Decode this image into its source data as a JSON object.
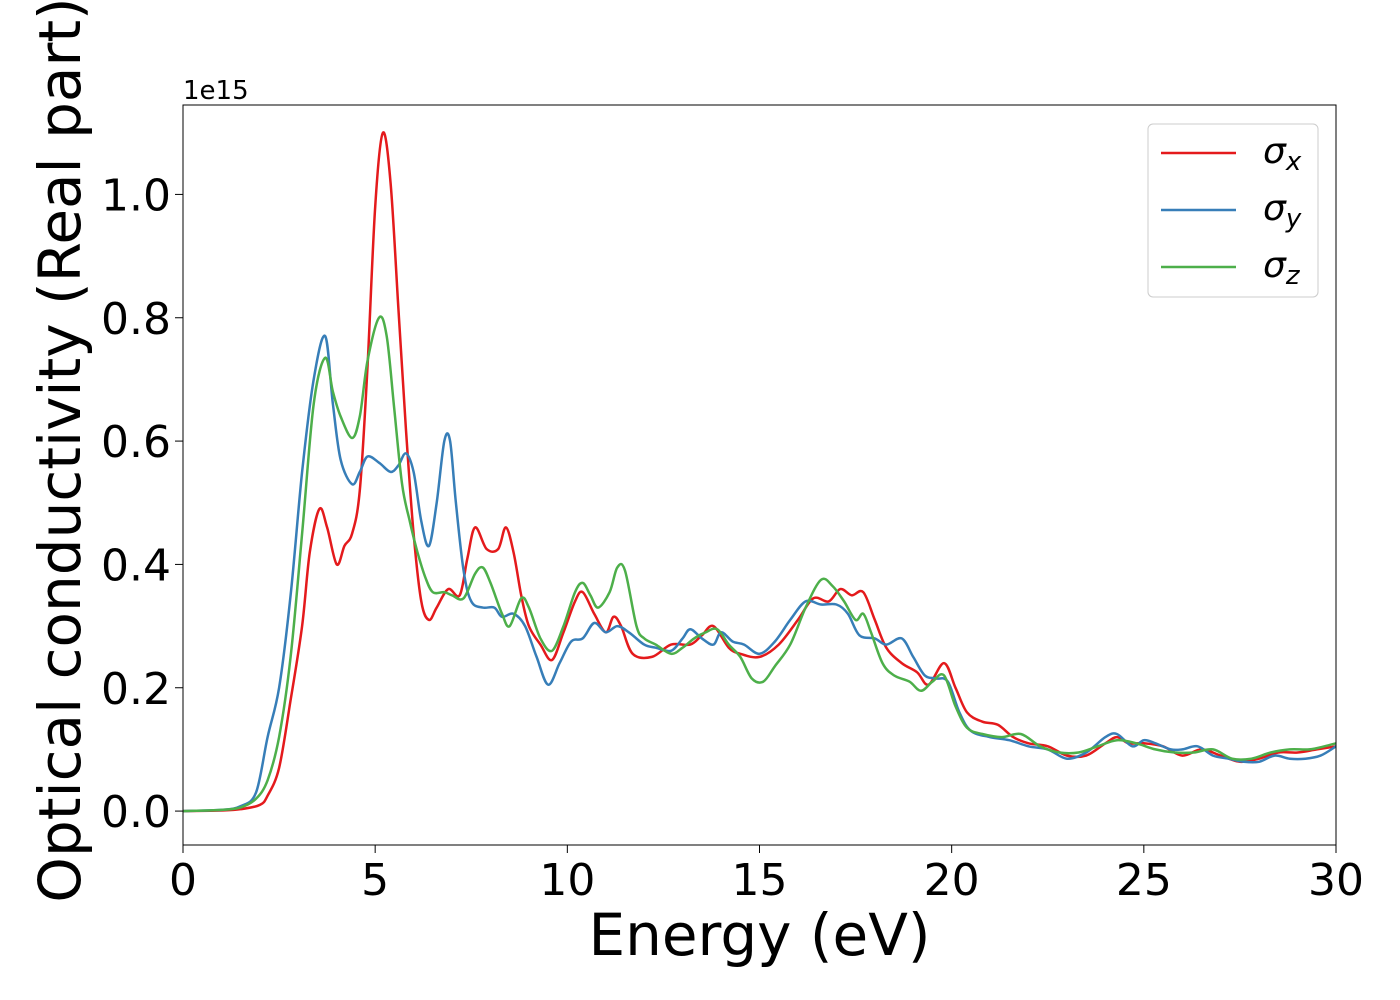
{
  "chart_data": {
    "type": "line",
    "title": "",
    "xlabel": "Energy (eV)",
    "ylabel": "Optical conductivity (Real part)",
    "y_scale_label": "1e15",
    "xlim": [
      0,
      30
    ],
    "ylim": [
      -0.055,
      1.145
    ],
    "x_ticks": [
      0,
      5,
      10,
      15,
      20,
      25,
      30
    ],
    "x_tick_labels": [
      "0",
      "5",
      "10",
      "15",
      "20",
      "25",
      "30"
    ],
    "y_ticks": [
      0.0,
      0.2,
      0.4,
      0.6,
      0.8,
      1.0
    ],
    "y_tick_labels": [
      "0.0",
      "0.2",
      "0.4",
      "0.6",
      "0.8",
      "1.0"
    ],
    "grid": false,
    "legend_position": "top-right",
    "series": [
      {
        "name": "σx",
        "legend_base": "σ",
        "legend_sub": "x",
        "color": "#e41a1c",
        "points": [
          [
            0,
            0
          ],
          [
            1,
            0.001
          ],
          [
            1.5,
            0.003
          ],
          [
            2,
            0.01
          ],
          [
            2.2,
            0.025
          ],
          [
            2.5,
            0.07
          ],
          [
            2.8,
            0.18
          ],
          [
            3.1,
            0.3
          ],
          [
            3.3,
            0.42
          ],
          [
            3.55,
            0.49
          ],
          [
            3.75,
            0.46
          ],
          [
            4.0,
            0.4
          ],
          [
            4.2,
            0.43
          ],
          [
            4.4,
            0.45
          ],
          [
            4.6,
            0.52
          ],
          [
            4.8,
            0.72
          ],
          [
            5.0,
            0.98
          ],
          [
            5.2,
            1.1
          ],
          [
            5.4,
            1.02
          ],
          [
            5.6,
            0.82
          ],
          [
            5.8,
            0.62
          ],
          [
            6.0,
            0.45
          ],
          [
            6.2,
            0.34
          ],
          [
            6.4,
            0.31
          ],
          [
            6.6,
            0.33
          ],
          [
            6.9,
            0.36
          ],
          [
            7.2,
            0.35
          ],
          [
            7.4,
            0.41
          ],
          [
            7.6,
            0.46
          ],
          [
            7.9,
            0.425
          ],
          [
            8.2,
            0.425
          ],
          [
            8.4,
            0.46
          ],
          [
            8.6,
            0.42
          ],
          [
            8.8,
            0.35
          ],
          [
            9.0,
            0.3
          ],
          [
            9.3,
            0.27
          ],
          [
            9.6,
            0.245
          ],
          [
            9.9,
            0.29
          ],
          [
            10.2,
            0.34
          ],
          [
            10.4,
            0.355
          ],
          [
            10.7,
            0.32
          ],
          [
            11.0,
            0.29
          ],
          [
            11.2,
            0.315
          ],
          [
            11.4,
            0.3
          ],
          [
            11.7,
            0.255
          ],
          [
            12.2,
            0.25
          ],
          [
            12.7,
            0.27
          ],
          [
            13.2,
            0.27
          ],
          [
            13.5,
            0.285
          ],
          [
            13.8,
            0.3
          ],
          [
            14.2,
            0.265
          ],
          [
            14.5,
            0.255
          ],
          [
            15.0,
            0.25
          ],
          [
            15.5,
            0.27
          ],
          [
            16.0,
            0.31
          ],
          [
            16.4,
            0.345
          ],
          [
            16.8,
            0.34
          ],
          [
            17.1,
            0.36
          ],
          [
            17.4,
            0.35
          ],
          [
            17.7,
            0.355
          ],
          [
            18.0,
            0.31
          ],
          [
            18.3,
            0.265
          ],
          [
            18.7,
            0.24
          ],
          [
            19.1,
            0.225
          ],
          [
            19.4,
            0.205
          ],
          [
            19.8,
            0.24
          ],
          [
            20.1,
            0.2
          ],
          [
            20.4,
            0.16
          ],
          [
            20.8,
            0.145
          ],
          [
            21.2,
            0.14
          ],
          [
            21.6,
            0.12
          ],
          [
            22.0,
            0.11
          ],
          [
            22.5,
            0.105
          ],
          [
            23.0,
            0.09
          ],
          [
            23.5,
            0.09
          ],
          [
            24.0,
            0.11
          ],
          [
            24.3,
            0.12
          ],
          [
            24.6,
            0.11
          ],
          [
            25.0,
            0.11
          ],
          [
            25.5,
            0.105
          ],
          [
            26.0,
            0.09
          ],
          [
            26.5,
            0.1
          ],
          [
            27.0,
            0.09
          ],
          [
            27.5,
            0.08
          ],
          [
            28.0,
            0.085
          ],
          [
            28.5,
            0.095
          ],
          [
            29.0,
            0.095
          ],
          [
            29.5,
            0.1
          ],
          [
            30.0,
            0.105
          ]
        ]
      },
      {
        "name": "σy",
        "legend_base": "σ",
        "legend_sub": "y",
        "color": "#377eb8",
        "points": [
          [
            0,
            0
          ],
          [
            1,
            0.002
          ],
          [
            1.5,
            0.008
          ],
          [
            1.9,
            0.03
          ],
          [
            2.2,
            0.12
          ],
          [
            2.5,
            0.2
          ],
          [
            2.8,
            0.35
          ],
          [
            3.1,
            0.55
          ],
          [
            3.4,
            0.7
          ],
          [
            3.7,
            0.77
          ],
          [
            3.9,
            0.66
          ],
          [
            4.1,
            0.57
          ],
          [
            4.4,
            0.53
          ],
          [
            4.6,
            0.55
          ],
          [
            4.8,
            0.575
          ],
          [
            5.1,
            0.565
          ],
          [
            5.4,
            0.55
          ],
          [
            5.6,
            0.56
          ],
          [
            5.8,
            0.58
          ],
          [
            6.0,
            0.55
          ],
          [
            6.2,
            0.47
          ],
          [
            6.4,
            0.43
          ],
          [
            6.6,
            0.5
          ],
          [
            6.8,
            0.6
          ],
          [
            6.95,
            0.6
          ],
          [
            7.1,
            0.5
          ],
          [
            7.3,
            0.39
          ],
          [
            7.5,
            0.34
          ],
          [
            7.8,
            0.33
          ],
          [
            8.1,
            0.33
          ],
          [
            8.3,
            0.315
          ],
          [
            8.6,
            0.32
          ],
          [
            8.9,
            0.3
          ],
          [
            9.2,
            0.25
          ],
          [
            9.5,
            0.205
          ],
          [
            9.8,
            0.24
          ],
          [
            10.1,
            0.275
          ],
          [
            10.4,
            0.28
          ],
          [
            10.7,
            0.305
          ],
          [
            11.0,
            0.29
          ],
          [
            11.3,
            0.3
          ],
          [
            11.6,
            0.29
          ],
          [
            12.0,
            0.27
          ],
          [
            12.3,
            0.265
          ],
          [
            12.7,
            0.26
          ],
          [
            13.0,
            0.28
          ],
          [
            13.2,
            0.295
          ],
          [
            13.5,
            0.28
          ],
          [
            13.8,
            0.27
          ],
          [
            14.0,
            0.29
          ],
          [
            14.3,
            0.275
          ],
          [
            14.6,
            0.27
          ],
          [
            15.0,
            0.255
          ],
          [
            15.4,
            0.275
          ],
          [
            15.8,
            0.31
          ],
          [
            16.2,
            0.34
          ],
          [
            16.6,
            0.335
          ],
          [
            17.0,
            0.335
          ],
          [
            17.3,
            0.32
          ],
          [
            17.6,
            0.285
          ],
          [
            18.0,
            0.28
          ],
          [
            18.3,
            0.27
          ],
          [
            18.7,
            0.28
          ],
          [
            19.0,
            0.25
          ],
          [
            19.3,
            0.22
          ],
          [
            19.6,
            0.215
          ],
          [
            19.9,
            0.21
          ],
          [
            20.2,
            0.16
          ],
          [
            20.5,
            0.13
          ],
          [
            21.0,
            0.12
          ],
          [
            21.5,
            0.115
          ],
          [
            22.0,
            0.105
          ],
          [
            22.5,
            0.1
          ],
          [
            23.0,
            0.085
          ],
          [
            23.5,
            0.095
          ],
          [
            24.0,
            0.12
          ],
          [
            24.3,
            0.125
          ],
          [
            24.7,
            0.105
          ],
          [
            25.0,
            0.115
          ],
          [
            25.3,
            0.11
          ],
          [
            25.7,
            0.1
          ],
          [
            26.0,
            0.1
          ],
          [
            26.4,
            0.105
          ],
          [
            26.8,
            0.09
          ],
          [
            27.2,
            0.085
          ],
          [
            27.6,
            0.08
          ],
          [
            28.0,
            0.08
          ],
          [
            28.4,
            0.09
          ],
          [
            28.8,
            0.085
          ],
          [
            29.2,
            0.085
          ],
          [
            29.6,
            0.09
          ],
          [
            30.0,
            0.105
          ]
        ]
      },
      {
        "name": "σz",
        "legend_base": "σ",
        "legend_sub": "z",
        "color": "#4daf4a",
        "points": [
          [
            0,
            0
          ],
          [
            1,
            0.002
          ],
          [
            1.5,
            0.006
          ],
          [
            1.9,
            0.02
          ],
          [
            2.2,
            0.05
          ],
          [
            2.5,
            0.12
          ],
          [
            2.8,
            0.25
          ],
          [
            3.1,
            0.45
          ],
          [
            3.4,
            0.66
          ],
          [
            3.7,
            0.735
          ],
          [
            3.9,
            0.68
          ],
          [
            4.1,
            0.64
          ],
          [
            4.4,
            0.605
          ],
          [
            4.6,
            0.64
          ],
          [
            4.8,
            0.73
          ],
          [
            5.1,
            0.8
          ],
          [
            5.3,
            0.77
          ],
          [
            5.5,
            0.65
          ],
          [
            5.7,
            0.53
          ],
          [
            5.9,
            0.47
          ],
          [
            6.1,
            0.42
          ],
          [
            6.3,
            0.38
          ],
          [
            6.5,
            0.355
          ],
          [
            6.8,
            0.355
          ],
          [
            7.0,
            0.35
          ],
          [
            7.3,
            0.345
          ],
          [
            7.6,
            0.385
          ],
          [
            7.8,
            0.395
          ],
          [
            8.0,
            0.37
          ],
          [
            8.3,
            0.32
          ],
          [
            8.5,
            0.3
          ],
          [
            8.8,
            0.345
          ],
          [
            9.0,
            0.33
          ],
          [
            9.3,
            0.28
          ],
          [
            9.6,
            0.26
          ],
          [
            9.9,
            0.3
          ],
          [
            10.2,
            0.355
          ],
          [
            10.4,
            0.37
          ],
          [
            10.6,
            0.35
          ],
          [
            10.8,
            0.33
          ],
          [
            11.1,
            0.355
          ],
          [
            11.3,
            0.395
          ],
          [
            11.5,
            0.39
          ],
          [
            11.8,
            0.3
          ],
          [
            12.0,
            0.28
          ],
          [
            12.3,
            0.27
          ],
          [
            12.7,
            0.255
          ],
          [
            13.0,
            0.265
          ],
          [
            13.3,
            0.28
          ],
          [
            13.6,
            0.29
          ],
          [
            13.9,
            0.295
          ],
          [
            14.2,
            0.27
          ],
          [
            14.5,
            0.25
          ],
          [
            14.8,
            0.215
          ],
          [
            15.1,
            0.21
          ],
          [
            15.4,
            0.235
          ],
          [
            15.8,
            0.27
          ],
          [
            16.2,
            0.33
          ],
          [
            16.6,
            0.375
          ],
          [
            16.9,
            0.365
          ],
          [
            17.2,
            0.34
          ],
          [
            17.5,
            0.31
          ],
          [
            17.7,
            0.32
          ],
          [
            17.9,
            0.29
          ],
          [
            18.2,
            0.24
          ],
          [
            18.5,
            0.22
          ],
          [
            18.9,
            0.21
          ],
          [
            19.2,
            0.195
          ],
          [
            19.5,
            0.21
          ],
          [
            19.8,
            0.22
          ],
          [
            20.1,
            0.17
          ],
          [
            20.4,
            0.135
          ],
          [
            20.8,
            0.125
          ],
          [
            21.3,
            0.12
          ],
          [
            21.8,
            0.125
          ],
          [
            22.3,
            0.105
          ],
          [
            22.8,
            0.095
          ],
          [
            23.3,
            0.095
          ],
          [
            23.8,
            0.105
          ],
          [
            24.3,
            0.115
          ],
          [
            24.8,
            0.11
          ],
          [
            25.3,
            0.1
          ],
          [
            25.8,
            0.095
          ],
          [
            26.3,
            0.095
          ],
          [
            26.8,
            0.1
          ],
          [
            27.3,
            0.085
          ],
          [
            27.8,
            0.085
          ],
          [
            28.3,
            0.095
          ],
          [
            28.8,
            0.1
          ],
          [
            29.3,
            0.1
          ],
          [
            29.7,
            0.105
          ],
          [
            30.0,
            0.11
          ]
        ]
      }
    ]
  }
}
